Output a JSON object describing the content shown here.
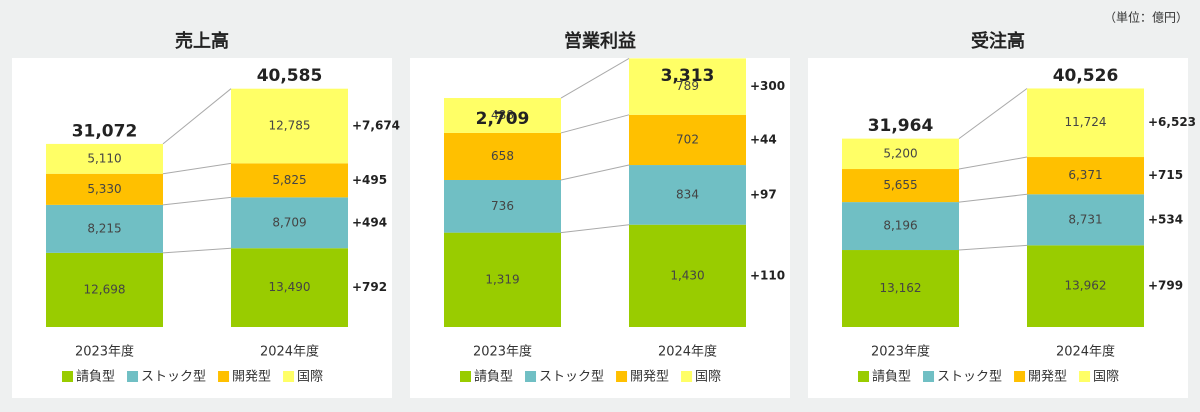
{
  "unit_note": "（単位：億円）",
  "chart_data": [
    {
      "type": "bar",
      "title": "売上高",
      "categories": [
        "2023年度",
        "2024年度"
      ],
      "series": [
        {
          "name": "請負型",
          "color": "#99cc00",
          "values": [
            12698,
            13490
          ],
          "value_labels": [
            "12,698",
            "13,490"
          ]
        },
        {
          "name": "ストック型",
          "color": "#70bfc4",
          "values": [
            8215,
            8709
          ],
          "value_labels": [
            "8,215",
            "8,709"
          ]
        },
        {
          "name": "開発型",
          "color": "#ffc000",
          "values": [
            5330,
            5825
          ],
          "value_labels": [
            "5,330",
            "5,825"
          ]
        },
        {
          "name": "国際",
          "color": "#ffff66",
          "values": [
            5110,
            12785
          ],
          "value_labels": [
            "5,110",
            "12,785"
          ]
        }
      ],
      "totals": [
        31072,
        40585
      ],
      "total_labels": [
        "31,072",
        "40,585"
      ],
      "changes": [
        792,
        494,
        495,
        7674
      ],
      "change_labels": [
        "+792",
        "+494",
        "+495",
        "+7,674"
      ]
    },
    {
      "type": "bar",
      "title": "営業利益",
      "categories": [
        "2023年度",
        "2024年度"
      ],
      "series": [
        {
          "name": "請負型",
          "color": "#99cc00",
          "values": [
            1319,
            1430
          ],
          "value_labels": [
            "1,319",
            "1,430"
          ]
        },
        {
          "name": "ストック型",
          "color": "#70bfc4",
          "values": [
            736,
            834
          ]
        },
        {
          "name": "開発型",
          "color": "#ffc000",
          "values": [
            658,
            702
          ]
        },
        {
          "name": "国際",
          "color": "#ffff66",
          "values": [
            488,
            789
          ]
        }
      ],
      "totals": [
        2709,
        3313
      ],
      "total_labels": [
        "2,709",
        "3,313"
      ],
      "changes": [
        110,
        97,
        44,
        300
      ],
      "change_labels": [
        "+110",
        "+97",
        "+44",
        "+300"
      ]
    },
    {
      "type": "bar",
      "title": "受注高",
      "categories": [
        "2023年度",
        "2024年度"
      ],
      "series": [
        {
          "name": "請負型",
          "color": "#99cc00",
          "values": [
            13162,
            13962
          ],
          "value_labels": [
            "13,162",
            "13,962"
          ]
        },
        {
          "name": "ストック型",
          "color": "#70bfc4",
          "values": [
            8196,
            8731
          ],
          "value_labels": [
            "8,196",
            "8,731"
          ]
        },
        {
          "name": "開発型",
          "color": "#ffc000",
          "values": [
            5655,
            6371
          ],
          "value_labels": [
            "5,655",
            "6,371"
          ]
        },
        {
          "name": "国際",
          "color": "#ffff66",
          "values": [
            5200,
            11724
          ],
          "value_labels": [
            "5,200",
            "11,724"
          ]
        }
      ],
      "totals": [
        31964,
        40526
      ],
      "total_labels": [
        "31,964",
        "40,526"
      ],
      "changes": [
        799,
        534,
        715,
        6523
      ],
      "change_labels": [
        "+799",
        "+534",
        "+715",
        "+6,523"
      ]
    }
  ]
}
